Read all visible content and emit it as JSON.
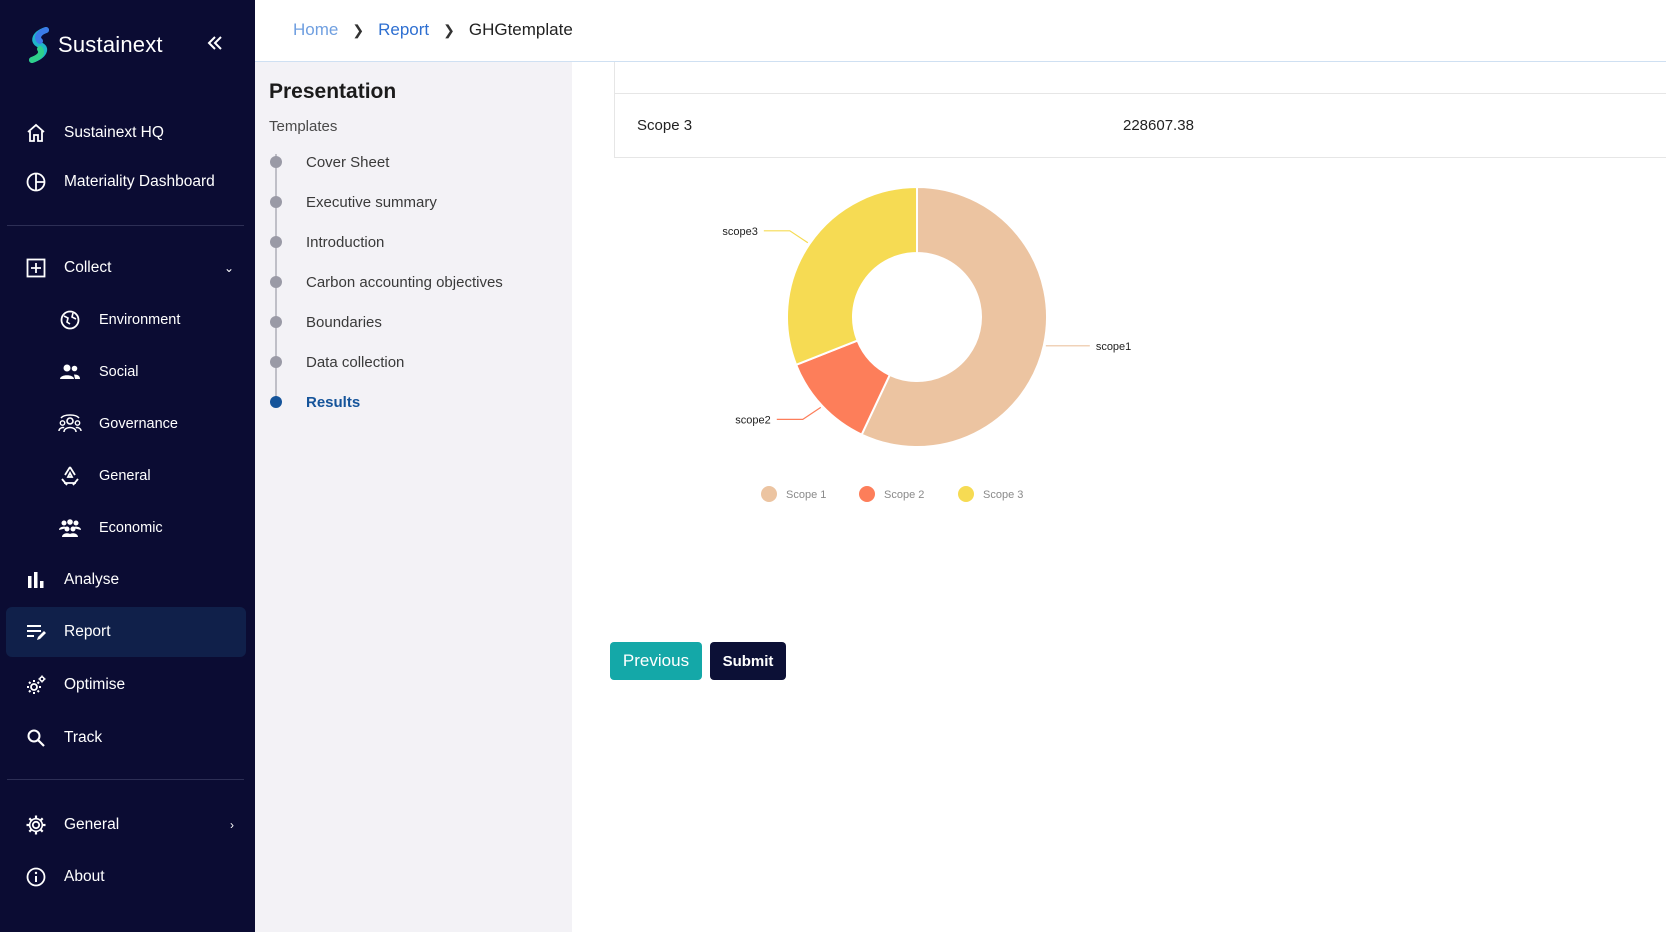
{
  "app": {
    "name": "Sustainext"
  },
  "sidebar": {
    "items": [
      {
        "label": "Sustainext HQ",
        "icon": "home-icon"
      },
      {
        "label": "Materiality Dashboard",
        "icon": "pie-icon"
      },
      {
        "label": "Collect",
        "icon": "plus-square-icon"
      },
      {
        "label": "Environment",
        "icon": "globe-icon"
      },
      {
        "label": "Social",
        "icon": "people-icon"
      },
      {
        "label": "Governance",
        "icon": "governance-icon"
      },
      {
        "label": "General",
        "icon": "recycle-icon"
      },
      {
        "label": "Economic",
        "icon": "group-icon"
      },
      {
        "label": "Analyse",
        "icon": "bar-chart-icon"
      },
      {
        "label": "Report",
        "icon": "edit-list-icon"
      },
      {
        "label": "Optimise",
        "icon": "gear-cog-icon"
      },
      {
        "label": "Track",
        "icon": "search-icon"
      },
      {
        "label": "General",
        "icon": "settings-icon"
      },
      {
        "label": "About",
        "icon": "info-icon"
      }
    ],
    "active": "Report"
  },
  "breadcrumb": {
    "home": "Home",
    "report": "Report",
    "current": "GHGtemplate"
  },
  "template_panel": {
    "title": "Presentation",
    "subtitle": "Templates",
    "steps": [
      {
        "label": "Cover Sheet"
      },
      {
        "label": "Executive summary"
      },
      {
        "label": "Introduction"
      },
      {
        "label": "Carbon accounting objectives"
      },
      {
        "label": "Boundaries"
      },
      {
        "label": "Data collection"
      },
      {
        "label": "Results"
      }
    ],
    "active_step": "Results"
  },
  "table": {
    "row_label": "Scope 3",
    "row_value": "228607.38"
  },
  "chart_data": {
    "type": "pie",
    "donut": true,
    "categories": [
      "scope1",
      "scope2",
      "scope3"
    ],
    "values": [
      57,
      12,
      31
    ],
    "legend": [
      "Scope 1",
      "Scope 2",
      "Scope 3"
    ],
    "colors": [
      "#ecc4a1",
      "#fd7e5a",
      "#f6db53"
    ],
    "legend_position": "bottom"
  },
  "buttons": {
    "previous": "Previous",
    "submit": "Submit"
  },
  "colors": {
    "sidebar_bg": "#0b0c33",
    "accent": "#14a8a8",
    "active_step": "#15549a"
  }
}
